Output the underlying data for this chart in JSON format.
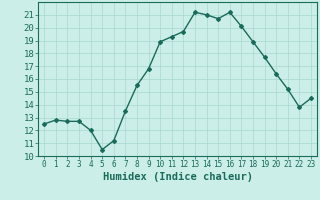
{
  "x": [
    0,
    1,
    2,
    3,
    4,
    5,
    6,
    7,
    8,
    9,
    10,
    11,
    12,
    13,
    14,
    15,
    16,
    17,
    18,
    19,
    20,
    21,
    22,
    23
  ],
  "y": [
    12.5,
    12.8,
    12.7,
    12.7,
    12.0,
    10.5,
    11.2,
    13.5,
    15.5,
    16.8,
    18.9,
    19.3,
    19.7,
    21.2,
    21.0,
    20.7,
    21.2,
    20.1,
    18.9,
    17.7,
    16.4,
    15.2,
    13.8,
    14.5
  ],
  "line_color": "#1a6b5a",
  "marker": "D",
  "markersize": 2.0,
  "linewidth": 1.0,
  "xlabel": "Humidex (Indice chaleur)",
  "xlabel_fontsize": 7.5,
  "ytick_fontsize": 6.5,
  "xtick_fontsize": 5.5,
  "ylim": [
    10,
    22
  ],
  "xlim": [
    -0.5,
    23.5
  ],
  "yticks": [
    10,
    11,
    12,
    13,
    14,
    15,
    16,
    17,
    18,
    19,
    20,
    21
  ],
  "xticks": [
    0,
    1,
    2,
    3,
    4,
    5,
    6,
    7,
    8,
    9,
    10,
    11,
    12,
    13,
    14,
    15,
    16,
    17,
    18,
    19,
    20,
    21,
    22,
    23
  ],
  "bg_color": "#cceee8",
  "grid_color": "#a8d8d0",
  "text_color": "#1a6b5a"
}
